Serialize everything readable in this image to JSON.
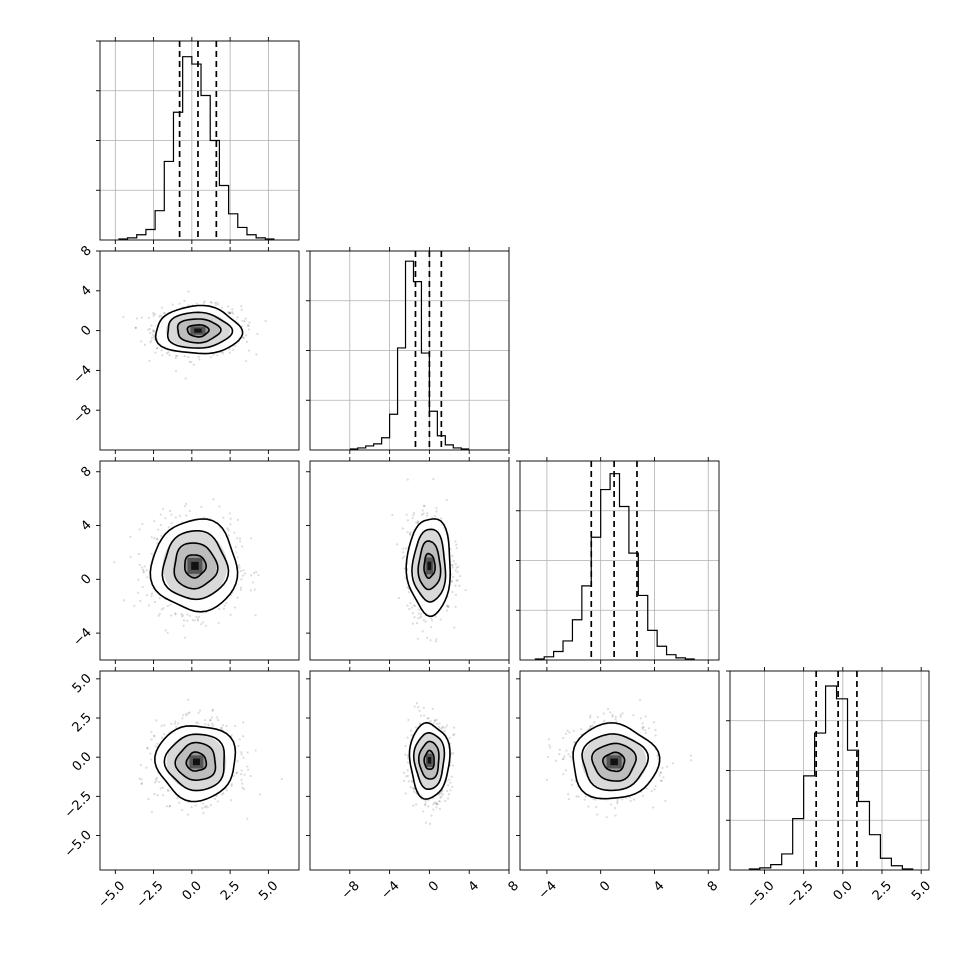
{
  "chart_data": {
    "type": "corner",
    "n_params": 4,
    "axis_ranges": [
      [
        -6.0,
        7.0
      ],
      [
        -12.0,
        8.0
      ],
      [
        -6.0,
        8.8
      ],
      [
        -7.2,
        5.5
      ]
    ],
    "ticks": [
      {
        "values": [
          -5.0,
          -2.5,
          0.0,
          2.5,
          5.0
        ],
        "labels": [
          "−5.0",
          "−2.5",
          "0.0",
          "2.5",
          "5.0"
        ]
      },
      {
        "values": [
          -8,
          -4,
          0,
          4,
          8
        ],
        "labels": [
          "−8",
          "−4",
          "0",
          "4",
          "8"
        ]
      },
      {
        "values": [
          -4,
          0,
          4,
          8
        ],
        "labels": [
          "−4",
          "0",
          "4",
          "8"
        ]
      },
      {
        "values": [
          -5.0,
          -2.5,
          0.0,
          2.5,
          5.0
        ],
        "labels": [
          "−5.0",
          "−2.5",
          "0.0",
          "2.5",
          "5.0"
        ]
      }
    ],
    "grid": true,
    "histograms": [
      {
        "bin_start": -4.8,
        "bin_width": 0.6,
        "quantiles": [
          -0.8,
          0.4,
          1.6
        ],
        "ymax": 190,
        "counts": [
          1,
          2,
          5,
          10,
          28,
          75,
          122,
          175,
          168,
          138,
          95,
          52,
          25,
          12,
          5,
          2,
          1
        ]
      },
      {
        "bin_start": -8.0,
        "bin_width": 0.8,
        "quantiles": [
          -1.4,
          0.0,
          1.2
        ],
        "ymax": 195,
        "counts": [
          1,
          2,
          4,
          6,
          12,
          35,
          100,
          185,
          165,
          95,
          38,
          14,
          5,
          2,
          1
        ]
      },
      {
        "bin_start": -4.9,
        "bin_width": 0.7,
        "quantiles": [
          -0.7,
          1.0,
          2.7
        ],
        "ymax": 188,
        "counts": [
          1,
          3,
          8,
          18,
          38,
          70,
          116,
          161,
          176,
          145,
          101,
          61,
          28,
          13,
          5,
          2,
          1
        ]
      },
      {
        "bin_start": -6.0,
        "bin_width": 0.7,
        "quantiles": [
          -1.7,
          -0.3,
          0.9
        ],
        "ymax": 186,
        "counts": [
          1,
          2,
          5,
          15,
          48,
          88,
          128,
          172,
          160,
          112,
          64,
          33,
          11,
          4,
          1
        ]
      }
    ],
    "pairs": [
      {
        "x": 0,
        "y": 1,
        "center": [
          0.4,
          0.0
        ],
        "spread": [
          1.4,
          1.2
        ]
      },
      {
        "x": 0,
        "y": 2,
        "center": [
          0.2,
          1.0
        ],
        "spread": [
          1.4,
          1.7
        ]
      },
      {
        "x": 1,
        "y": 2,
        "center": [
          0.0,
          1.0
        ],
        "spread": [
          1.1,
          1.8
        ]
      },
      {
        "x": 0,
        "y": 3,
        "center": [
          0.3,
          -0.3
        ],
        "spread": [
          1.3,
          1.2
        ]
      },
      {
        "x": 1,
        "y": 3,
        "center": [
          0.0,
          -0.2
        ],
        "spread": [
          1.0,
          1.2
        ]
      },
      {
        "x": 2,
        "y": 3,
        "center": [
          1.0,
          -0.3
        ],
        "spread": [
          1.6,
          1.2
        ]
      }
    ],
    "contour_levels": [
      0.5,
      1.0,
      1.5,
      2.0
    ]
  }
}
